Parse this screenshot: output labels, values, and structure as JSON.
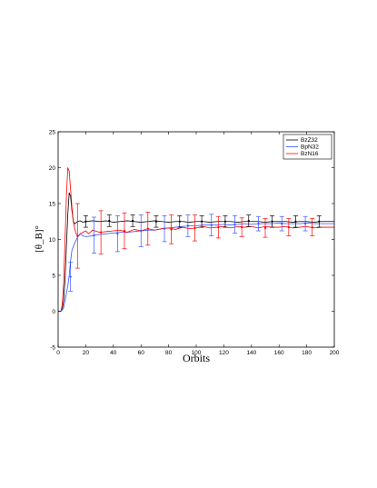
{
  "chart_data": {
    "type": "line",
    "xlabel": "Orbits",
    "ylabel": "[θ_B]°",
    "xlim": [
      0,
      200
    ],
    "ylim": [
      -5,
      25
    ],
    "xticks": [
      0,
      20,
      40,
      60,
      80,
      100,
      120,
      140,
      160,
      180,
      200
    ],
    "yticks": [
      -5,
      0,
      5,
      10,
      15,
      20,
      25
    ],
    "grid": false,
    "legend_position": "top-right",
    "series": [
      {
        "name": "BzZ32",
        "color": "#000000",
        "x": [
          0,
          2,
          3,
          4,
          5,
          6,
          7,
          8,
          9,
          10,
          11,
          12,
          13,
          14,
          16,
          18,
          20,
          25,
          30,
          35,
          40,
          45,
          50,
          55,
          60,
          65,
          70,
          75,
          80,
          85,
          90,
          95,
          100,
          105,
          110,
          115,
          120,
          125,
          130,
          135,
          140,
          145,
          150,
          155,
          160,
          165,
          170,
          175,
          180,
          185,
          190,
          195,
          200
        ],
        "y": [
          0,
          0,
          0.3,
          1.5,
          4.5,
          9,
          13.5,
          16.5,
          16,
          14,
          12.5,
          12.2,
          12.3,
          12.5,
          12.6,
          12.4,
          12.5,
          12.6,
          12.5,
          12.6,
          12.4,
          12.5,
          12.6,
          12.5,
          12.4,
          12.5,
          12.6,
          12.5,
          12.4,
          12.5,
          12.5,
          12.4,
          12.5,
          12.5,
          12.4,
          12.5,
          12.5,
          12.5,
          12.4,
          12.5,
          12.5,
          12.5,
          12.4,
          12.5,
          12.5,
          12.5,
          12.4,
          12.5,
          12.5,
          12.4,
          12.5,
          12.5,
          12.5
        ]
      },
      {
        "name": "BpN32",
        "color": "#3355ff",
        "x": [
          0,
          2,
          3,
          4,
          5,
          6,
          7,
          8,
          9,
          10,
          12,
          14,
          16,
          18,
          20,
          25,
          30,
          35,
          40,
          45,
          50,
          55,
          60,
          65,
          70,
          75,
          80,
          85,
          90,
          95,
          100,
          105,
          110,
          115,
          120,
          125,
          130,
          135,
          140,
          145,
          150,
          155,
          160,
          165,
          170,
          175,
          180,
          185,
          190,
          195,
          200
        ],
        "y": [
          0,
          0,
          0.2,
          0.5,
          1.5,
          2.5,
          3.5,
          5,
          7,
          8.5,
          9.5,
          10.3,
          10.8,
          10.5,
          10.4,
          10.5,
          10.7,
          10.8,
          10.9,
          11.0,
          11.0,
          11.1,
          11.2,
          11.3,
          11.3,
          11.5,
          11.6,
          11.7,
          11.8,
          11.9,
          11.9,
          12.0,
          12.0,
          12.0,
          12.1,
          12.0,
          12.1,
          12.2,
          12.1,
          12.2,
          12.2,
          12.2,
          12.3,
          12.2,
          12.2,
          12.2,
          12.3,
          12.2,
          12.2,
          12.2,
          12.2
        ]
      },
      {
        "name": "BzN16",
        "color": "#ff0000",
        "x": [
          0,
          2,
          3,
          4,
          5,
          6,
          7,
          8,
          9,
          10,
          11,
          12,
          13,
          14,
          15,
          16,
          18,
          20,
          22,
          25,
          30,
          35,
          40,
          45,
          50,
          55,
          60,
          65,
          70,
          75,
          80,
          85,
          90,
          95,
          100,
          105,
          110,
          115,
          120,
          125,
          130,
          135,
          140,
          145,
          150,
          155,
          160,
          165,
          170,
          175,
          180,
          185,
          190,
          195,
          200
        ],
        "y": [
          0,
          0,
          1,
          4,
          10,
          16,
          20,
          19.5,
          17,
          14.5,
          12.5,
          11.5,
          10.8,
          10.5,
          10.5,
          10.8,
          11,
          11.2,
          10.8,
          11.3,
          11.0,
          11.1,
          11.2,
          11.3,
          11.0,
          11.4,
          11.2,
          11.5,
          11.3,
          11.5,
          11.6,
          11.4,
          11.7,
          11.5,
          11.6,
          11.8,
          11.6,
          11.7,
          11.8,
          11.6,
          11.8,
          11.7,
          11.8,
          11.6,
          11.8,
          11.7,
          11.7,
          11.8,
          11.6,
          11.7,
          11.8,
          11.6,
          11.7,
          11.7,
          11.7
        ]
      }
    ],
    "error_bars": [
      {
        "series": "BzZ32",
        "color": "#000000",
        "x": [
          20,
          37,
          54,
          71,
          88,
          104,
          121,
          138,
          155,
          172,
          189
        ],
        "y": [
          12.5,
          12.6,
          12.6,
          12.5,
          12.5,
          12.5,
          12.5,
          12.6,
          12.5,
          12.5,
          12.5
        ],
        "err": [
          0.8,
          0.8,
          0.8,
          0.8,
          0.8,
          0.8,
          0.8,
          0.8,
          0.8,
          0.8,
          0.8
        ]
      },
      {
        "series": "BpN32",
        "color": "#3355ff",
        "x": [
          9,
          26,
          43,
          60,
          77,
          94,
          111,
          128,
          145,
          162,
          179
        ],
        "y": [
          4.8,
          10.6,
          10.8,
          11.2,
          11.5,
          11.9,
          12.0,
          12.1,
          12.2,
          12.2,
          12.2
        ],
        "err": [
          2.0,
          2.5,
          2.5,
          2.2,
          1.8,
          1.5,
          1.5,
          1.2,
          1.0,
          1.0,
          1.0
        ]
      },
      {
        "series": "BzN16",
        "color": "#ff0000",
        "x": [
          14,
          31,
          48,
          65,
          82,
          99,
          116,
          133,
          150,
          167,
          184
        ],
        "y": [
          10.5,
          11.0,
          11.2,
          11.5,
          11.4,
          11.6,
          11.7,
          11.7,
          11.6,
          11.7,
          11.7
        ],
        "err": [
          4.5,
          3.0,
          2.5,
          2.3,
          2.0,
          1.8,
          1.5,
          1.3,
          1.3,
          1.2,
          1.2
        ]
      }
    ]
  }
}
